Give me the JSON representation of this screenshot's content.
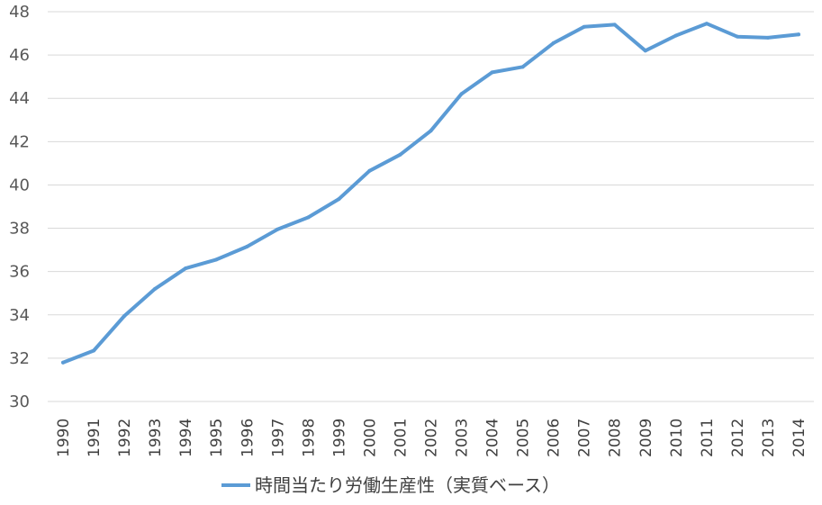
{
  "chart_data": {
    "type": "line",
    "title": "",
    "xlabel": "",
    "ylabel": "",
    "ylim": [
      30,
      48
    ],
    "yticks": [
      30,
      32,
      34,
      36,
      38,
      40,
      42,
      44,
      46,
      48
    ],
    "grid": true,
    "legend_position": "bottom",
    "categories": [
      "1990",
      "1991",
      "1992",
      "1993",
      "1994",
      "1995",
      "1996",
      "1997",
      "1998",
      "1999",
      "2000",
      "2001",
      "2002",
      "2003",
      "2004",
      "2005",
      "2006",
      "2007",
      "2008",
      "2009",
      "2010",
      "2011",
      "2012",
      "2013",
      "2014"
    ],
    "series": [
      {
        "name": "時間当たり労働生産性（実質ベース）",
        "color": "#5b9bd5",
        "values": [
          31.8,
          32.35,
          33.95,
          35.2,
          36.15,
          36.55,
          37.15,
          37.95,
          38.5,
          39.35,
          40.65,
          41.4,
          42.5,
          44.2,
          45.2,
          45.45,
          46.55,
          47.3,
          47.4,
          46.2,
          46.9,
          47.45,
          46.85,
          46.8,
          46.95
        ]
      }
    ]
  }
}
